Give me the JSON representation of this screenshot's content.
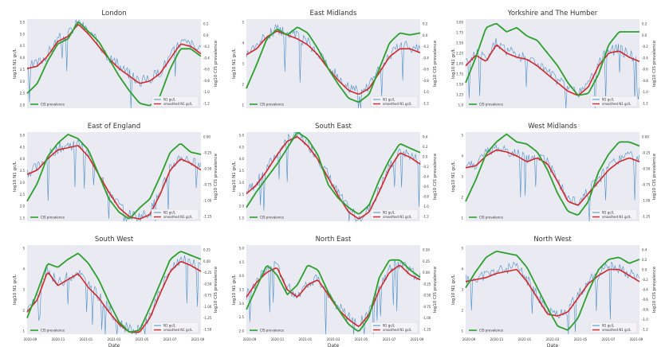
{
  "chart_data": {
    "type": "line",
    "xlabel": "Date",
    "x_tick_labels": [
      "2020-09",
      "2020-11",
      "2021-01",
      "2021-03",
      "2021-05",
      "2021-07",
      "2021-09"
    ],
    "ylabel_left": "log10 N1 gc/L",
    "ylabel_right": "log10 CIS prevalence",
    "legend_left": "CIS prevalence",
    "legend_right_raw": "N1 gc/L",
    "legend_right_smoothed": "smoothed N1 gc/L",
    "colors": {
      "raw": "#4a8ec9",
      "smoothed": "#d62728",
      "cis": "#2ca02c",
      "panel_bg": "#eaeaf2"
    },
    "panels": [
      {
        "title": "London",
        "ylim": [
          2.0,
          5.6
        ],
        "y_ticks": [
          "2.0",
          "2.5",
          "3.0",
          "3.5",
          "4.0",
          "4.5",
          "5.0",
          "5.5"
        ],
        "r_ticks": [
          "0.2",
          "0.0",
          "-0.2",
          "-0.4",
          "-0.6",
          "-0.8",
          "-1.0",
          "-1.2"
        ],
        "smoothed": [
          3.6,
          3.7,
          4.1,
          4.7,
          4.9,
          5.4,
          5.0,
          4.5,
          4.0,
          3.6,
          3.3,
          3.0,
          3.1,
          3.4,
          4.0,
          4.6,
          4.5,
          4.2
        ],
        "cis": [
          2.6,
          3.0,
          3.9,
          4.6,
          4.8,
          5.5,
          5.1,
          4.7,
          4.0,
          3.3,
          2.7,
          2.2,
          2.1,
          2.5,
          3.6,
          4.4,
          4.4,
          4.1
        ]
      },
      {
        "title": "East Midlands",
        "ylim": [
          1.0,
          5.5
        ],
        "y_ticks": [
          "1",
          "2",
          "3",
          "4",
          "5"
        ],
        "r_ticks": [
          "0.2",
          "0.0",
          "-0.2",
          "-0.4",
          "-0.6",
          "-0.8",
          "-1.0",
          "-1.2"
        ],
        "smoothed": [
          3.7,
          4.0,
          4.6,
          4.9,
          4.7,
          4.5,
          4.2,
          3.7,
          3.0,
          2.4,
          1.9,
          1.7,
          2.0,
          2.8,
          3.6,
          4.0,
          4.0,
          3.8
        ],
        "cis": [
          2.0,
          3.2,
          4.5,
          5.0,
          4.7,
          5.1,
          4.8,
          4.0,
          3.0,
          2.2,
          1.5,
          1.3,
          1.7,
          3.0,
          4.3,
          4.8,
          4.7,
          4.8
        ]
      },
      {
        "title": "Yorkshire and The Humber",
        "ylim": [
          1.0,
          3.1
        ],
        "y_ticks": [
          "1.0",
          "1.25",
          "1.50",
          "1.75",
          "2.00",
          "2.25",
          "2.50",
          "2.75",
          "3.00"
        ],
        "r_ticks": [
          "0.2",
          "0.0",
          "-0.2",
          "-0.4",
          "-0.6",
          "-0.8",
          "-1.0",
          "-1.2"
        ],
        "smoothed": [
          2.0,
          2.25,
          2.1,
          2.5,
          2.3,
          2.2,
          2.15,
          2.0,
          1.8,
          1.6,
          1.4,
          1.3,
          1.5,
          2.0,
          2.3,
          2.35,
          2.2,
          2.1
        ],
        "cis": [
          1.6,
          2.2,
          2.9,
          3.0,
          2.8,
          2.9,
          2.7,
          2.6,
          2.3,
          2.0,
          1.6,
          1.3,
          1.35,
          1.8,
          2.5,
          2.8,
          2.8,
          2.8
        ]
      },
      {
        "title": "East of England",
        "ylim": [
          1.4,
          5.4
        ],
        "y_ticks": [
          "1.5",
          "2.0",
          "2.5",
          "3.0",
          "3.5",
          "4.0",
          "4.5",
          "5.0"
        ],
        "r_ticks": [
          "0.00",
          "-0.25",
          "-0.50",
          "-0.75",
          "-1.00",
          "-1.25"
        ],
        "smoothed": [
          3.5,
          3.7,
          4.2,
          4.6,
          4.7,
          4.8,
          4.3,
          3.5,
          2.7,
          2.0,
          1.6,
          1.5,
          1.7,
          2.6,
          3.7,
          4.2,
          4.0,
          3.7
        ],
        "cis": [
          2.3,
          3.1,
          4.3,
          4.9,
          5.3,
          5.1,
          4.6,
          3.5,
          2.4,
          1.8,
          1.5,
          2.0,
          2.4,
          3.4,
          4.5,
          4.9,
          4.5,
          4.4
        ]
      },
      {
        "title": "South East",
        "ylim": [
          1.4,
          5.3
        ],
        "y_ticks": [
          "1.5",
          "2.0",
          "2.5",
          "3.0",
          "3.5",
          "4.0",
          "4.5",
          "5.0"
        ],
        "r_ticks": [
          "0.4",
          "0.2",
          "0.0",
          "-0.2",
          "-0.4",
          "-0.6",
          "-0.8",
          "-1.0",
          "-1.2"
        ],
        "smoothed": [
          2.6,
          3.0,
          3.6,
          4.3,
          4.9,
          5.1,
          4.7,
          4.1,
          3.3,
          2.5,
          1.8,
          1.5,
          1.8,
          2.7,
          3.7,
          4.4,
          4.2,
          3.9
        ],
        "cis": [
          2.0,
          2.7,
          3.3,
          3.9,
          4.6,
          5.3,
          5.0,
          4.3,
          3.0,
          2.4,
          2.0,
          1.7,
          2.1,
          3.2,
          4.1,
          4.8,
          4.6,
          4.4
        ]
      },
      {
        "title": "West Midlands",
        "ylim": [
          1.0,
          5.5
        ],
        "y_ticks": [
          "1",
          "2",
          "3",
          "4",
          "5"
        ],
        "r_ticks": [
          "0.00",
          "-0.25",
          "-0.50",
          "-0.75",
          "-1.00",
          "-1.25"
        ],
        "smoothed": [
          3.7,
          3.8,
          4.3,
          4.6,
          4.5,
          4.3,
          4.0,
          4.2,
          3.9,
          3.0,
          2.0,
          1.8,
          2.4,
          3.0,
          3.6,
          4.0,
          4.2,
          4.0
        ],
        "cis": [
          2.0,
          3.1,
          4.4,
          5.0,
          5.4,
          5.0,
          4.9,
          4.5,
          3.6,
          2.4,
          1.5,
          1.3,
          2.0,
          3.5,
          4.4,
          5.0,
          5.0,
          4.8
        ]
      },
      {
        "title": "South West",
        "ylim": [
          0.9,
          5.3
        ],
        "y_ticks": [
          "1",
          "2",
          "3",
          "4",
          "5"
        ],
        "r_ticks": [
          "0.25",
          "0.00",
          "-0.25",
          "-0.50",
          "-0.75",
          "-1.00",
          "-1.25",
          "-1.50"
        ],
        "smoothed": [
          2.0,
          2.6,
          4.0,
          3.3,
          3.6,
          3.9,
          3.2,
          2.7,
          2.0,
          1.4,
          1.0,
          1.0,
          1.7,
          2.9,
          4.0,
          4.5,
          4.3,
          4.0
        ],
        "cis": [
          1.7,
          3.0,
          4.4,
          4.2,
          4.6,
          4.9,
          4.4,
          3.6,
          2.5,
          1.5,
          1.0,
          1.1,
          2.2,
          3.4,
          4.6,
          5.0,
          4.8,
          4.6
        ]
      },
      {
        "title": "North East",
        "ylim": [
          1.8,
          5.4
        ],
        "y_ticks": [
          "2.0",
          "2.5",
          "3.0",
          "3.5",
          "4.0",
          "4.5",
          "5.0"
        ],
        "r_ticks": [
          "0.50",
          "0.25",
          "0.00",
          "-0.25",
          "-0.50",
          "-0.75",
          "-1.00",
          "-1.25"
        ],
        "smoothed": [
          3.3,
          3.9,
          4.3,
          4.5,
          3.6,
          3.3,
          3.8,
          4.0,
          3.4,
          2.8,
          2.4,
          2.1,
          2.6,
          3.6,
          4.3,
          4.6,
          4.2,
          4.0
        ],
        "cis": [
          2.8,
          3.7,
          4.6,
          4.2,
          3.4,
          3.8,
          4.6,
          4.4,
          3.5,
          2.8,
          2.2,
          1.9,
          2.5,
          4.1,
          4.8,
          4.8,
          4.4,
          4.1
        ]
      },
      {
        "title": "North West",
        "ylim": [
          0.9,
          5.3
        ],
        "y_ticks": [
          "1",
          "2",
          "3",
          "4",
          "5"
        ],
        "r_ticks": [
          "0.4",
          "0.2",
          "0.0",
          "-0.2",
          "-0.4",
          "-0.6",
          "-0.8",
          "-1.0",
          "-1.2"
        ],
        "smoothed": [
          3.5,
          3.6,
          3.7,
          3.9,
          4.0,
          4.1,
          3.5,
          2.7,
          1.9,
          1.8,
          2.0,
          2.7,
          3.4,
          3.8,
          4.1,
          4.1,
          3.8,
          3.5
        ],
        "cis": [
          3.2,
          4.0,
          4.7,
          5.0,
          4.9,
          4.8,
          4.2,
          3.2,
          2.2,
          1.3,
          1.1,
          1.7,
          3.0,
          4.1,
          4.6,
          4.7,
          4.4,
          4.6
        ]
      }
    ]
  }
}
